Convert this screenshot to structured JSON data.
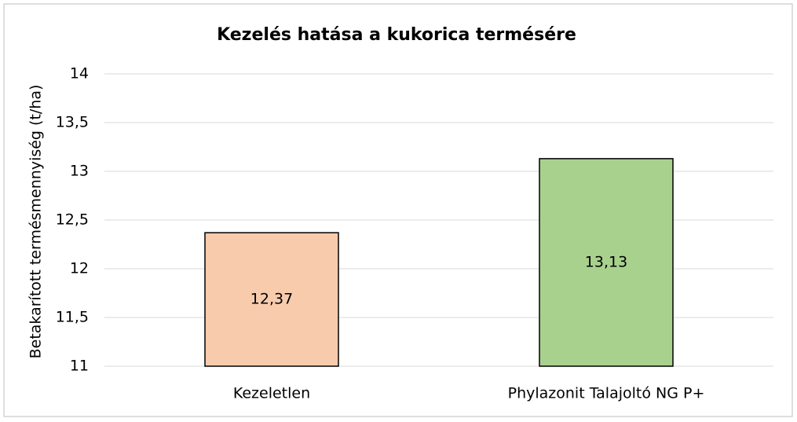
{
  "chart_data": {
    "type": "bar",
    "title": "Kezelés hatása a kukorica termésére",
    "y_label": "Betakarított termésmennyiség  (t/ha)",
    "categories": [
      "Kezeletlen",
      "Phylazonit Talajoltó NG P+"
    ],
    "values": [
      12.37,
      13.13
    ],
    "value_labels": [
      "12,37",
      "13,13"
    ],
    "colors": [
      "#f8cbad",
      "#a9d18e"
    ],
    "ylim": [
      11,
      14
    ],
    "yticks": [
      11,
      {
        "value": 11.5,
        "label": "11,5"
      },
      12,
      {
        "value": 12.5,
        "label": "12,5"
      },
      13,
      {
        "value": 13.5,
        "label": "13,5"
      },
      14
    ],
    "grid": true
  }
}
